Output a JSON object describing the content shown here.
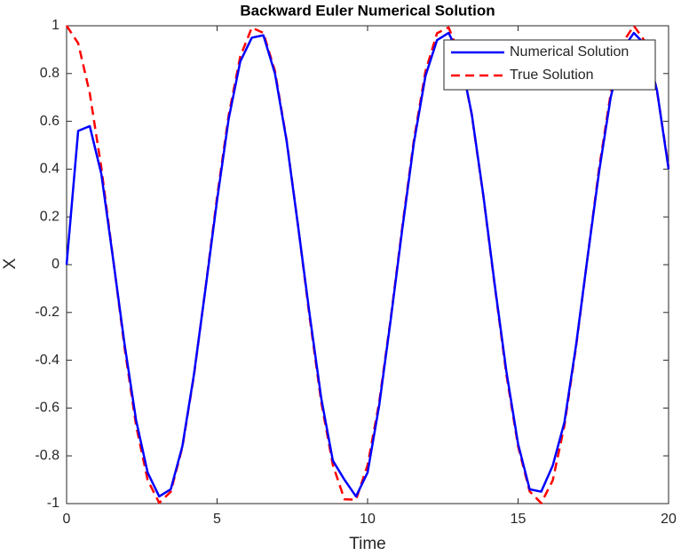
{
  "chart_data": {
    "type": "line",
    "title": "Backward Euler Numerical Solution",
    "x_label": "Time",
    "y_label": "X",
    "x": [
      0,
      0.3846,
      0.7692,
      1.1538,
      1.5385,
      1.9231,
      2.3077,
      2.6923,
      3.0769,
      3.4615,
      3.8462,
      4.2308,
      4.6154,
      5.0,
      5.3846,
      5.7692,
      6.1538,
      6.5385,
      6.9231,
      7.3077,
      7.6923,
      8.0769,
      8.4615,
      8.8462,
      9.2308,
      9.6154,
      10.0,
      10.3846,
      10.7692,
      11.1538,
      11.5385,
      11.9231,
      12.3077,
      12.6923,
      13.0769,
      13.4615,
      13.8462,
      14.2308,
      14.6154,
      15.0,
      15.3846,
      15.7692,
      16.1538,
      16.5385,
      16.9231,
      17.3077,
      17.6923,
      18.0769,
      18.4615,
      18.8462,
      19.2308,
      19.6154,
      20.0
    ],
    "series": [
      {
        "name": "Numerical Solution",
        "color": "#0000ff",
        "dash": false,
        "values": [
          0,
          0.56,
          0.58,
          0.38,
          0.03,
          -0.33,
          -0.65,
          -0.87,
          -0.97,
          -0.94,
          -0.76,
          -0.46,
          -0.1,
          0.27,
          0.61,
          0.85,
          0.95,
          0.96,
          0.8,
          0.52,
          0.16,
          -0.21,
          -0.56,
          -0.82,
          -0.9,
          -0.97,
          -0.87,
          -0.59,
          -0.23,
          0.15,
          0.51,
          0.79,
          0.94,
          0.97,
          0.87,
          0.63,
          0.29,
          -0.09,
          -0.45,
          -0.75,
          -0.94,
          -0.95,
          -0.84,
          -0.66,
          -0.34,
          0.03,
          0.39,
          0.7,
          0.9,
          0.97,
          0.92,
          0.73,
          0.4
        ]
      },
      {
        "name": "True Solution",
        "color": "#ff0000",
        "dash": true,
        "values": [
          1,
          0.927,
          0.718,
          0.406,
          0.032,
          -0.345,
          -0.672,
          -0.901,
          -0.997,
          -0.95,
          -0.764,
          -0.465,
          -0.097,
          0.284,
          0.625,
          0.871,
          0.992,
          0.97,
          0.81,
          0.523,
          0.161,
          -0.222,
          -0.576,
          -0.838,
          -0.982,
          -0.984,
          -0.839,
          -0.577,
          -0.224,
          0.159,
          0.522,
          0.809,
          0.969,
          0.993,
          0.873,
          0.627,
          0.287,
          -0.095,
          -0.463,
          -0.76,
          -0.949,
          -0.998,
          -0.902,
          -0.674,
          -0.347,
          0.03,
          0.404,
          0.716,
          0.926,
          1.0,
          0.932,
          0.727,
          0.408
        ]
      }
    ],
    "xlim": [
      0,
      20
    ],
    "xticks": [
      0,
      5,
      10,
      15,
      20
    ],
    "ylim": [
      -1,
      1
    ],
    "yticks": [
      -1,
      -0.8,
      -0.6,
      -0.4,
      -0.2,
      0,
      0.2,
      0.4,
      0.6,
      0.8,
      1
    ],
    "grid": false,
    "legend_position": "upper-right"
  }
}
